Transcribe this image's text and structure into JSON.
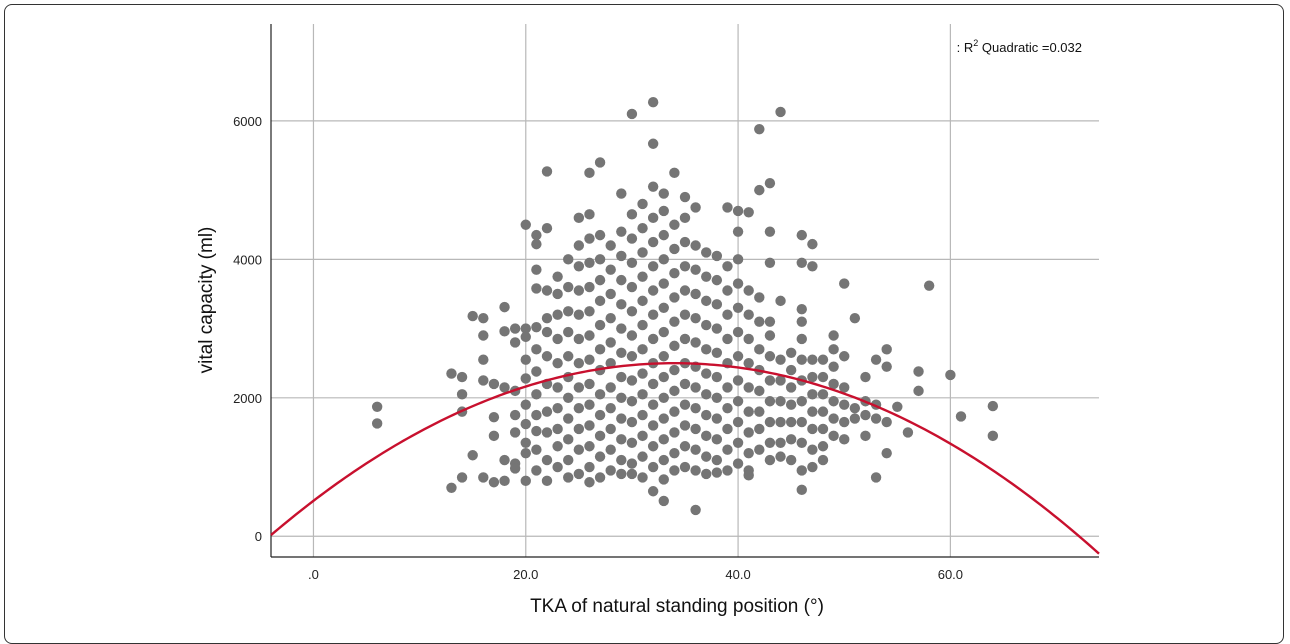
{
  "chart_data": {
    "type": "scatter",
    "xlabel": "TKA of natural standing position (°)",
    "ylabel": "vital capacity (ml)",
    "x_ticks": [
      {
        "value": 0,
        "label": ".0"
      },
      {
        "value": 20,
        "label": "20.0"
      },
      {
        "value": 40,
        "label": "40.0"
      },
      {
        "value": 60,
        "label": "60.0"
      }
    ],
    "y_ticks": [
      {
        "value": 0,
        "label": "0"
      },
      {
        "value": 2000,
        "label": "2000"
      },
      {
        "value": 4000,
        "label": "4000"
      },
      {
        "value": 6000,
        "label": "6000"
      }
    ],
    "xlim": [
      -4,
      74
    ],
    "ylim": [
      -300,
      7400
    ],
    "grid": true,
    "legend": {
      "prefix": ": R",
      "sup": "2",
      "suffix": " Quadratic =0.032",
      "placement": "top-right"
    },
    "fit": {
      "type": "quadratic",
      "vertex_x": 34,
      "vertex_y": 2500,
      "a": -1.72,
      "color": "#c8102e"
    },
    "point_color": "#757575",
    "points": [
      [
        6,
        1870
      ],
      [
        6,
        1630
      ],
      [
        13,
        2350
      ],
      [
        13,
        700
      ],
      [
        14,
        2300
      ],
      [
        14,
        2050
      ],
      [
        14,
        1800
      ],
      [
        14,
        850
      ],
      [
        15,
        3180
      ],
      [
        15,
        1170
      ],
      [
        16,
        3150
      ],
      [
        16,
        2900
      ],
      [
        16,
        2550
      ],
      [
        16,
        2250
      ],
      [
        16,
        850
      ],
      [
        17,
        2200
      ],
      [
        17,
        1720
      ],
      [
        17,
        1450
      ],
      [
        17,
        780
      ],
      [
        18,
        3310
      ],
      [
        18,
        2960
      ],
      [
        18,
        2150
      ],
      [
        18,
        1100
      ],
      [
        18,
        800
      ],
      [
        19,
        3000
      ],
      [
        19,
        2800
      ],
      [
        19,
        2100
      ],
      [
        19,
        1750
      ],
      [
        19,
        1500
      ],
      [
        19,
        1050
      ],
      [
        19,
        980
      ],
      [
        20,
        4500
      ],
      [
        20,
        3000
      ],
      [
        20,
        2880
      ],
      [
        20,
        2550
      ],
      [
        20,
        2280
      ],
      [
        20,
        1900
      ],
      [
        20,
        1620
      ],
      [
        20,
        1350
      ],
      [
        20,
        1200
      ],
      [
        20,
        800
      ],
      [
        21,
        4350
      ],
      [
        21,
        4220
      ],
      [
        21,
        3850
      ],
      [
        21,
        3580
      ],
      [
        21,
        3020
      ],
      [
        21,
        2700
      ],
      [
        21,
        2380
      ],
      [
        21,
        2050
      ],
      [
        21,
        1750
      ],
      [
        21,
        1520
      ],
      [
        21,
        1250
      ],
      [
        21,
        950
      ],
      [
        22,
        5270
      ],
      [
        22,
        4450
      ],
      [
        22,
        3550
      ],
      [
        22,
        3150
      ],
      [
        22,
        2950
      ],
      [
        22,
        2600
      ],
      [
        22,
        2200
      ],
      [
        22,
        1800
      ],
      [
        22,
        1500
      ],
      [
        22,
        1100
      ],
      [
        22,
        800
      ],
      [
        23,
        3750
      ],
      [
        23,
        3500
      ],
      [
        23,
        3200
      ],
      [
        23,
        2850
      ],
      [
        23,
        2500
      ],
      [
        23,
        2150
      ],
      [
        23,
        1850
      ],
      [
        23,
        1550
      ],
      [
        23,
        1300
      ],
      [
        23,
        1000
      ],
      [
        24,
        4000
      ],
      [
        24,
        3600
      ],
      [
        24,
        3250
      ],
      [
        24,
        2950
      ],
      [
        24,
        2600
      ],
      [
        24,
        2300
      ],
      [
        24,
        2000
      ],
      [
        24,
        1700
      ],
      [
        24,
        1400
      ],
      [
        24,
        1100
      ],
      [
        24,
        850
      ],
      [
        25,
        4600
      ],
      [
        25,
        4200
      ],
      [
        25,
        3900
      ],
      [
        25,
        3550
      ],
      [
        25,
        3200
      ],
      [
        25,
        2850
      ],
      [
        25,
        2500
      ],
      [
        25,
        2150
      ],
      [
        25,
        1850
      ],
      [
        25,
        1550
      ],
      [
        25,
        1250
      ],
      [
        25,
        900
      ],
      [
        26,
        5250
      ],
      [
        26,
        4650
      ],
      [
        26,
        4300
      ],
      [
        26,
        3950
      ],
      [
        26,
        3600
      ],
      [
        26,
        3250
      ],
      [
        26,
        2900
      ],
      [
        26,
        2550
      ],
      [
        26,
        2200
      ],
      [
        26,
        1900
      ],
      [
        26,
        1600
      ],
      [
        26,
        1300
      ],
      [
        26,
        1000
      ],
      [
        26,
        780
      ],
      [
        27,
        5400
      ],
      [
        27,
        4350
      ],
      [
        27,
        4000
      ],
      [
        27,
        3700
      ],
      [
        27,
        3400
      ],
      [
        27,
        3050
      ],
      [
        27,
        2700
      ],
      [
        27,
        2400
      ],
      [
        27,
        2050
      ],
      [
        27,
        1750
      ],
      [
        27,
        1450
      ],
      [
        27,
        1150
      ],
      [
        27,
        850
      ],
      [
        28,
        4200
      ],
      [
        28,
        3850
      ],
      [
        28,
        3500
      ],
      [
        28,
        3150
      ],
      [
        28,
        2800
      ],
      [
        28,
        2500
      ],
      [
        28,
        2150
      ],
      [
        28,
        1850
      ],
      [
        28,
        1550
      ],
      [
        28,
        1250
      ],
      [
        28,
        950
      ],
      [
        29,
        4950
      ],
      [
        29,
        4400
      ],
      [
        29,
        4050
      ],
      [
        29,
        3700
      ],
      [
        29,
        3350
      ],
      [
        29,
        3000
      ],
      [
        29,
        2650
      ],
      [
        29,
        2300
      ],
      [
        29,
        2000
      ],
      [
        29,
        1700
      ],
      [
        29,
        1400
      ],
      [
        29,
        1100
      ],
      [
        29,
        900
      ],
      [
        30,
        6100
      ],
      [
        30,
        4650
      ],
      [
        30,
        4300
      ],
      [
        30,
        3950
      ],
      [
        30,
        3600
      ],
      [
        30,
        3250
      ],
      [
        30,
        2900
      ],
      [
        30,
        2600
      ],
      [
        30,
        2250
      ],
      [
        30,
        1950
      ],
      [
        30,
        1650
      ],
      [
        30,
        1350
      ],
      [
        30,
        1050
      ],
      [
        30,
        900
      ],
      [
        31,
        4800
      ],
      [
        31,
        4450
      ],
      [
        31,
        4100
      ],
      [
        31,
        3750
      ],
      [
        31,
        3400
      ],
      [
        31,
        3050
      ],
      [
        31,
        2700
      ],
      [
        31,
        2350
      ],
      [
        31,
        2050
      ],
      [
        31,
        1750
      ],
      [
        31,
        1450
      ],
      [
        31,
        1150
      ],
      [
        31,
        850
      ],
      [
        32,
        6270
      ],
      [
        32,
        5670
      ],
      [
        32,
        5050
      ],
      [
        32,
        4600
      ],
      [
        32,
        4250
      ],
      [
        32,
        3900
      ],
      [
        32,
        3550
      ],
      [
        32,
        3200
      ],
      [
        32,
        2850
      ],
      [
        32,
        2500
      ],
      [
        32,
        2200
      ],
      [
        32,
        1900
      ],
      [
        32,
        1600
      ],
      [
        32,
        1300
      ],
      [
        32,
        1000
      ],
      [
        32,
        650
      ],
      [
        33,
        4950
      ],
      [
        33,
        4700
      ],
      [
        33,
        4350
      ],
      [
        33,
        4000
      ],
      [
        33,
        3650
      ],
      [
        33,
        3300
      ],
      [
        33,
        2950
      ],
      [
        33,
        2600
      ],
      [
        33,
        2300
      ],
      [
        33,
        2000
      ],
      [
        33,
        1700
      ],
      [
        33,
        1400
      ],
      [
        33,
        1100
      ],
      [
        33,
        820
      ],
      [
        33,
        510
      ],
      [
        34,
        5250
      ],
      [
        34,
        4500
      ],
      [
        34,
        4150
      ],
      [
        34,
        3800
      ],
      [
        34,
        3450
      ],
      [
        34,
        3100
      ],
      [
        34,
        2750
      ],
      [
        34,
        2400
      ],
      [
        34,
        2100
      ],
      [
        34,
        1800
      ],
      [
        34,
        1500
      ],
      [
        34,
        1200
      ],
      [
        34,
        950
      ],
      [
        35,
        4900
      ],
      [
        35,
        4600
      ],
      [
        35,
        4250
      ],
      [
        35,
        3900
      ],
      [
        35,
        3550
      ],
      [
        35,
        3200
      ],
      [
        35,
        2850
      ],
      [
        35,
        2500
      ],
      [
        35,
        2200
      ],
      [
        35,
        1900
      ],
      [
        35,
        1600
      ],
      [
        35,
        1300
      ],
      [
        35,
        1000
      ],
      [
        36,
        4750
      ],
      [
        36,
        4200
      ],
      [
        36,
        3850
      ],
      [
        36,
        3500
      ],
      [
        36,
        3150
      ],
      [
        36,
        2800
      ],
      [
        36,
        2450
      ],
      [
        36,
        2150
      ],
      [
        36,
        1850
      ],
      [
        36,
        1550
      ],
      [
        36,
        1250
      ],
      [
        36,
        950
      ],
      [
        36,
        380
      ],
      [
        37,
        4100
      ],
      [
        37,
        3750
      ],
      [
        37,
        3400
      ],
      [
        37,
        3050
      ],
      [
        37,
        2700
      ],
      [
        37,
        2350
      ],
      [
        37,
        2050
      ],
      [
        37,
        1750
      ],
      [
        37,
        1450
      ],
      [
        37,
        1150
      ],
      [
        37,
        900
      ],
      [
        38,
        4050
      ],
      [
        38,
        3700
      ],
      [
        38,
        3350
      ],
      [
        38,
        3000
      ],
      [
        38,
        2650
      ],
      [
        38,
        2300
      ],
      [
        38,
        2000
      ],
      [
        38,
        1700
      ],
      [
        38,
        1400
      ],
      [
        38,
        1100
      ],
      [
        38,
        920
      ],
      [
        39,
        4750
      ],
      [
        39,
        3900
      ],
      [
        39,
        3550
      ],
      [
        39,
        3200
      ],
      [
        39,
        2850
      ],
      [
        39,
        2500
      ],
      [
        39,
        2150
      ],
      [
        39,
        1850
      ],
      [
        39,
        1550
      ],
      [
        39,
        1250
      ],
      [
        39,
        950
      ],
      [
        40,
        4700
      ],
      [
        40,
        4400
      ],
      [
        40,
        4000
      ],
      [
        40,
        3650
      ],
      [
        40,
        3300
      ],
      [
        40,
        2950
      ],
      [
        40,
        2600
      ],
      [
        40,
        2250
      ],
      [
        40,
        1950
      ],
      [
        40,
        1650
      ],
      [
        40,
        1350
      ],
      [
        40,
        1050
      ],
      [
        41,
        4680
      ],
      [
        41,
        3550
      ],
      [
        41,
        3200
      ],
      [
        41,
        2850
      ],
      [
        41,
        2500
      ],
      [
        41,
        2150
      ],
      [
        41,
        1800
      ],
      [
        41,
        1500
      ],
      [
        41,
        1200
      ],
      [
        41,
        950
      ],
      [
        41,
        880
      ],
      [
        42,
        5880
      ],
      [
        42,
        5000
      ],
      [
        42,
        3450
      ],
      [
        42,
        3100
      ],
      [
        42,
        2700
      ],
      [
        42,
        2400
      ],
      [
        42,
        2100
      ],
      [
        42,
        1800
      ],
      [
        42,
        1550
      ],
      [
        42,
        1250
      ],
      [
        43,
        5100
      ],
      [
        43,
        4400
      ],
      [
        43,
        3950
      ],
      [
        43,
        3100
      ],
      [
        43,
        2900
      ],
      [
        43,
        2600
      ],
      [
        43,
        2250
      ],
      [
        43,
        1950
      ],
      [
        43,
        1650
      ],
      [
        43,
        1350
      ],
      [
        43,
        1100
      ],
      [
        44,
        6130
      ],
      [
        44,
        3400
      ],
      [
        44,
        2550
      ],
      [
        44,
        2250
      ],
      [
        44,
        1950
      ],
      [
        44,
        1650
      ],
      [
        44,
        1350
      ],
      [
        44,
        1150
      ],
      [
        45,
        2650
      ],
      [
        45,
        2400
      ],
      [
        45,
        2150
      ],
      [
        45,
        1900
      ],
      [
        45,
        1650
      ],
      [
        45,
        1400
      ],
      [
        45,
        1100
      ],
      [
        46,
        4350
      ],
      [
        46,
        3950
      ],
      [
        46,
        3280
      ],
      [
        46,
        3100
      ],
      [
        46,
        2850
      ],
      [
        46,
        2550
      ],
      [
        46,
        2250
      ],
      [
        46,
        1950
      ],
      [
        46,
        1650
      ],
      [
        46,
        1350
      ],
      [
        46,
        950
      ],
      [
        46,
        670
      ],
      [
        47,
        4220
      ],
      [
        47,
        3900
      ],
      [
        47,
        2550
      ],
      [
        47,
        2300
      ],
      [
        47,
        2050
      ],
      [
        47,
        1800
      ],
      [
        47,
        1550
      ],
      [
        47,
        1250
      ],
      [
        47,
        1000
      ],
      [
        48,
        2550
      ],
      [
        48,
        2300
      ],
      [
        48,
        2050
      ],
      [
        48,
        1800
      ],
      [
        48,
        1550
      ],
      [
        48,
        1300
      ],
      [
        48,
        1100
      ],
      [
        49,
        2900
      ],
      [
        49,
        2700
      ],
      [
        49,
        2450
      ],
      [
        49,
        2200
      ],
      [
        49,
        1950
      ],
      [
        49,
        1700
      ],
      [
        49,
        1450
      ],
      [
        50,
        3650
      ],
      [
        50,
        2600
      ],
      [
        50,
        2150
      ],
      [
        50,
        1900
      ],
      [
        50,
        1650
      ],
      [
        50,
        1400
      ],
      [
        51,
        3150
      ],
      [
        51,
        1850
      ],
      [
        51,
        1700
      ],
      [
        52,
        2300
      ],
      [
        52,
        1950
      ],
      [
        52,
        1750
      ],
      [
        52,
        1450
      ],
      [
        53,
        2550
      ],
      [
        53,
        1900
      ],
      [
        53,
        1700
      ],
      [
        53,
        850
      ],
      [
        54,
        2700
      ],
      [
        54,
        2450
      ],
      [
        54,
        1650
      ],
      [
        54,
        1200
      ],
      [
        55,
        1870
      ],
      [
        56,
        1500
      ],
      [
        57,
        2380
      ],
      [
        57,
        2100
      ],
      [
        58,
        3620
      ],
      [
        60,
        2330
      ],
      [
        61,
        1730
      ],
      [
        64,
        1880
      ],
      [
        64,
        1450
      ]
    ]
  }
}
